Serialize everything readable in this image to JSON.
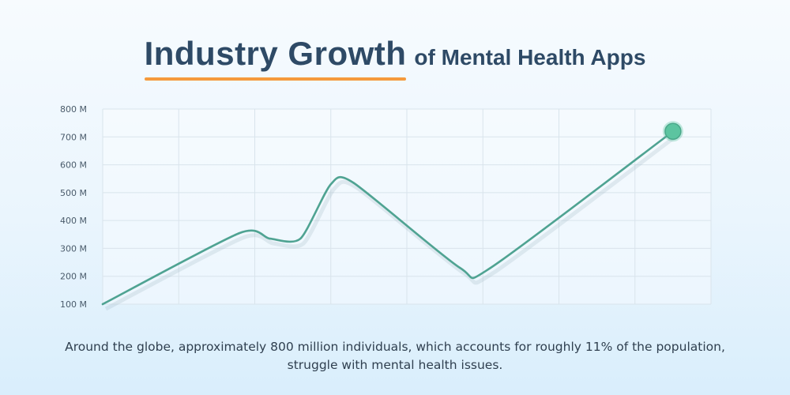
{
  "title": {
    "main": "Industry Growth",
    "rest": "of Mental Health Apps"
  },
  "caption": "Around the globe, approximately 800 million individuals, which accounts for roughly 11% of the population, struggle with mental health issues.",
  "colors": {
    "line": "#4fa392",
    "marker": "#5cc4a0",
    "accent": "#f59a3c",
    "grid": "#d9e4ec",
    "title": "#2e4a66"
  },
  "chart_data": {
    "type": "line",
    "title": "Industry Growth of Mental Health Apps",
    "xlabel": "",
    "ylabel": "",
    "ylim": [
      100,
      800
    ],
    "yticks": [
      100,
      200,
      300,
      400,
      500,
      600,
      700,
      800
    ],
    "yticklabels": [
      "100 M",
      "200 M",
      "300 M",
      "400 M",
      "500 M",
      "600 M",
      "700 M",
      "800 M"
    ],
    "x": [
      0,
      1.8,
      2.2,
      2.6,
      3.0,
      3.3,
      4.7,
      5.1,
      7.5
    ],
    "xlim": [
      0,
      8
    ],
    "grid": true,
    "series": [
      {
        "values": [
          100,
          355,
          335,
          335,
          530,
          535,
          230,
          230,
          720
        ]
      }
    ],
    "end_marker": true
  }
}
